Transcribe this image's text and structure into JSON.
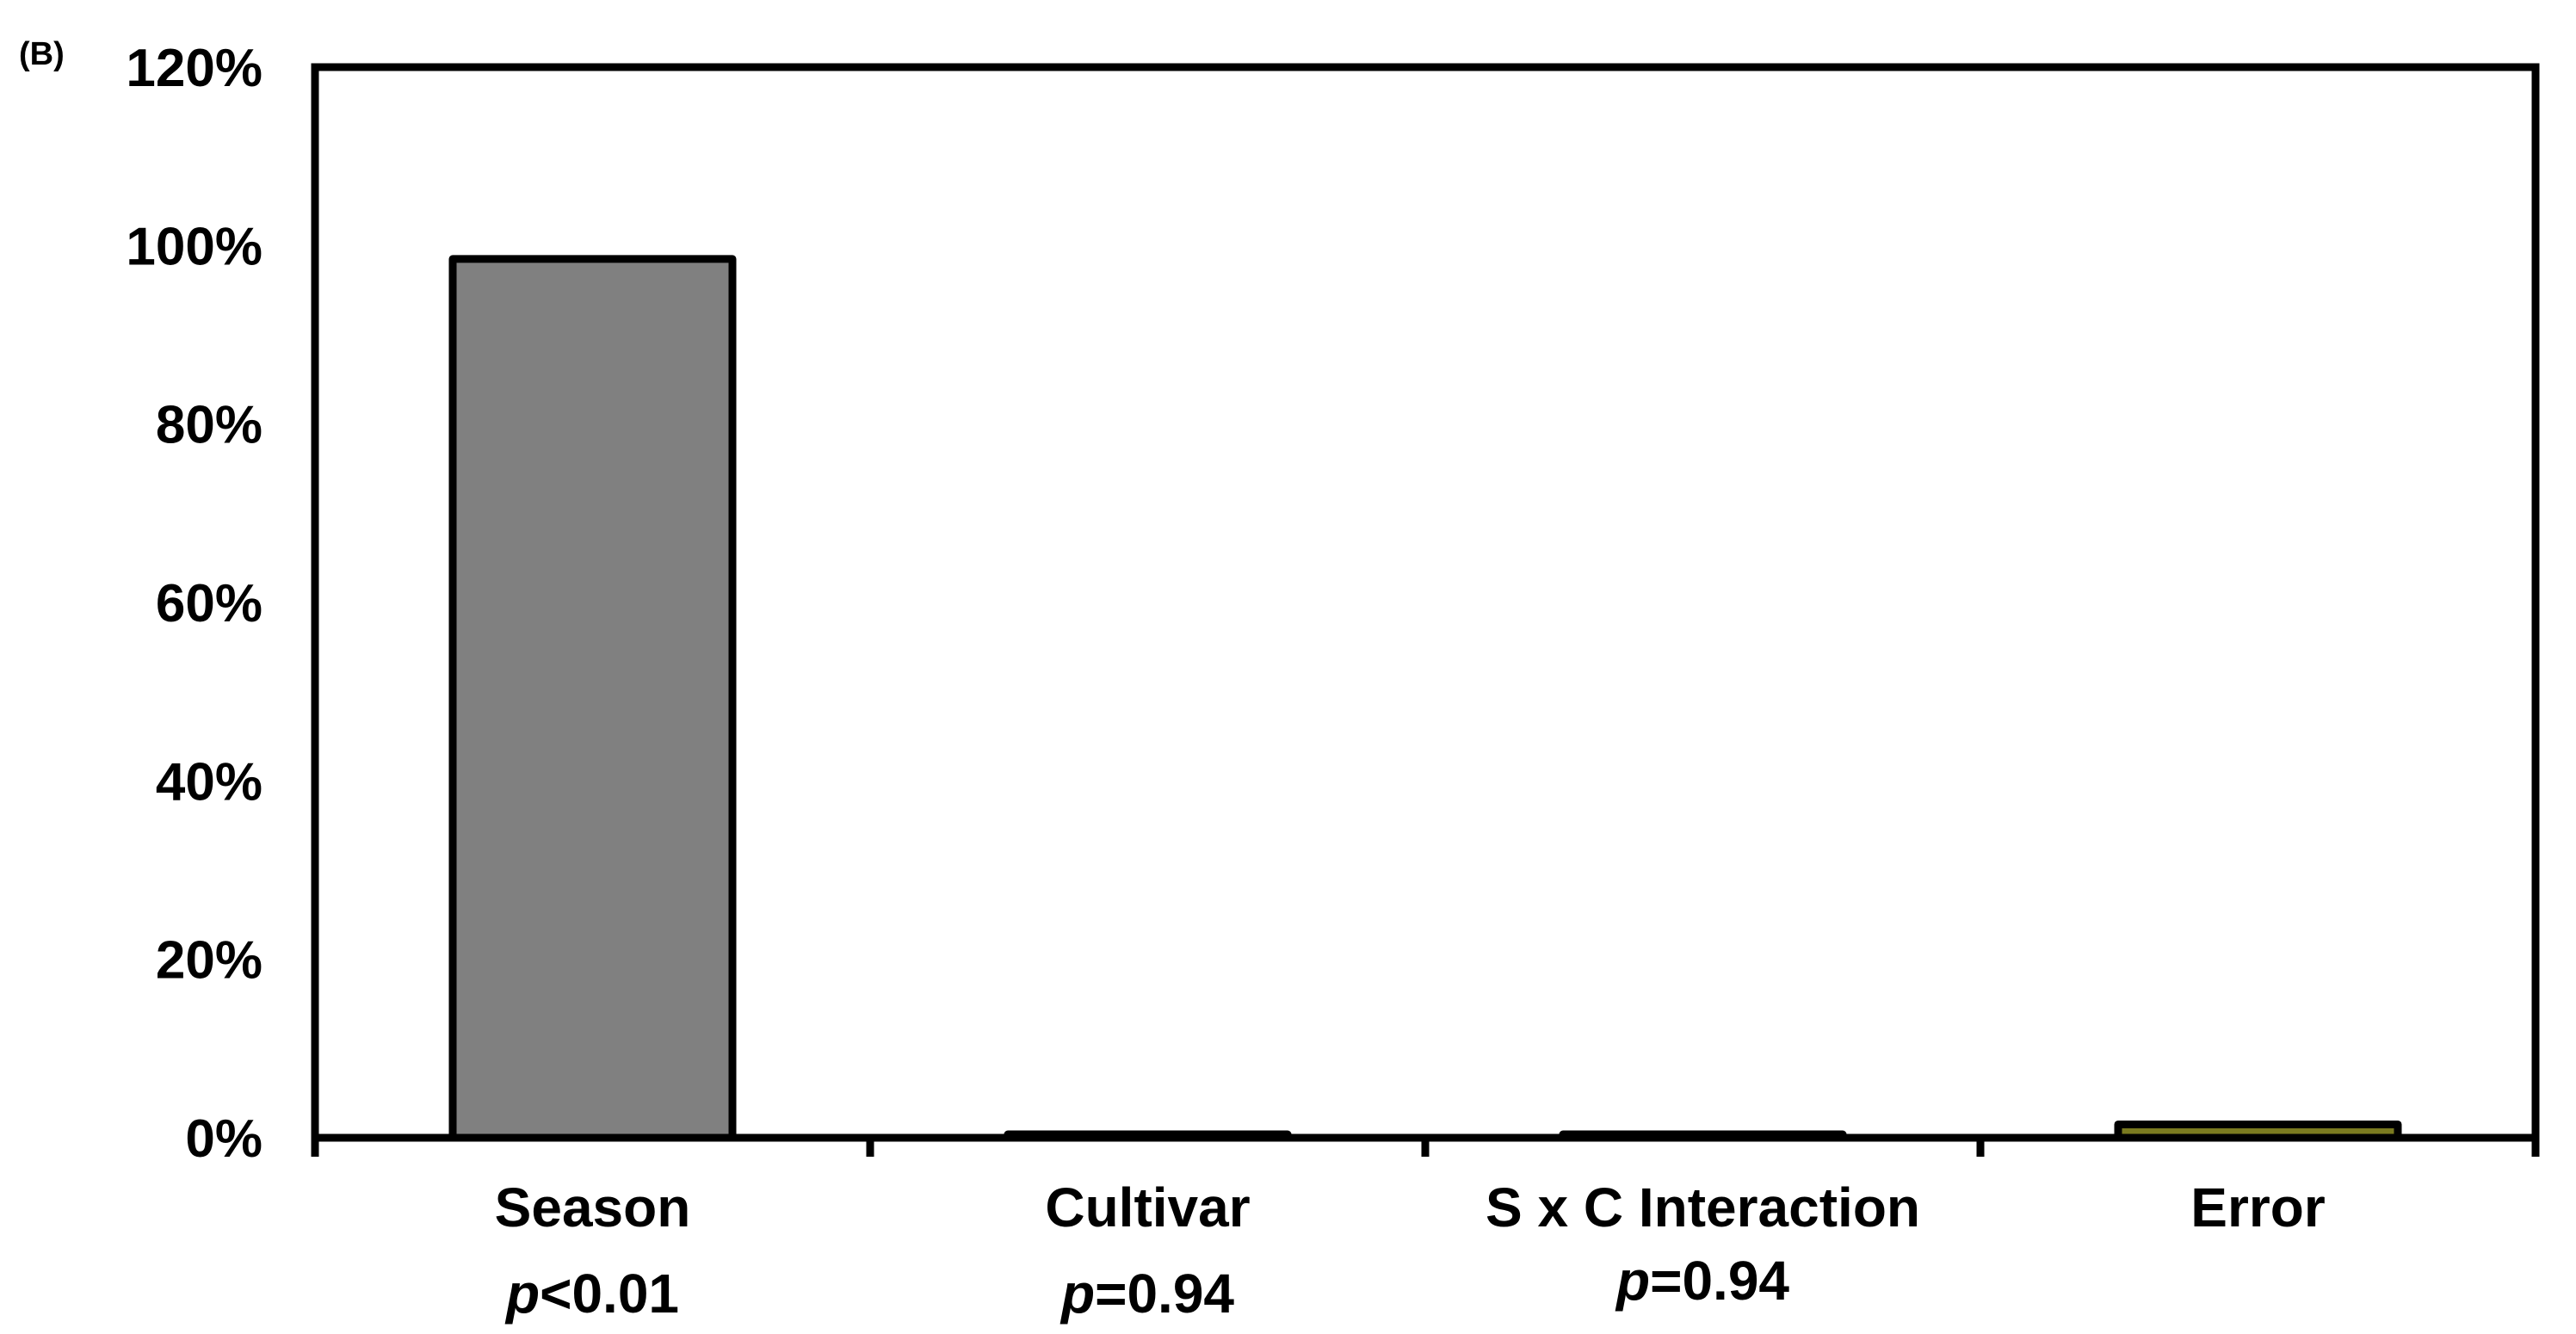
{
  "panel_label": "(B)",
  "chart_data": {
    "type": "bar",
    "categories": [
      "Season",
      "Cultivar",
      "S x C Interaction",
      "Error"
    ],
    "category_pvalues": [
      {
        "symbol": "p",
        "text": "<0.01"
      },
      {
        "symbol": "p",
        "text": "=0.94"
      },
      {
        "symbol": "p",
        "text": "=0.94"
      },
      {
        "symbol": "",
        "text": ""
      }
    ],
    "values": [
      98.5,
      0,
      0,
      1.5
    ],
    "value_unit": "%",
    "ylim": [
      0,
      120
    ],
    "yticks": [
      "0%",
      "20%",
      "40%",
      "60%",
      "80%",
      "100%",
      "120%"
    ],
    "ytick_values": [
      0,
      20,
      40,
      60,
      80,
      100,
      120
    ],
    "bar_colors": [
      "#808080",
      "#808080",
      "#808080",
      "#7a7a20"
    ],
    "grid": false,
    "legend": "none",
    "title": "",
    "xlabel": "",
    "ylabel": ""
  }
}
